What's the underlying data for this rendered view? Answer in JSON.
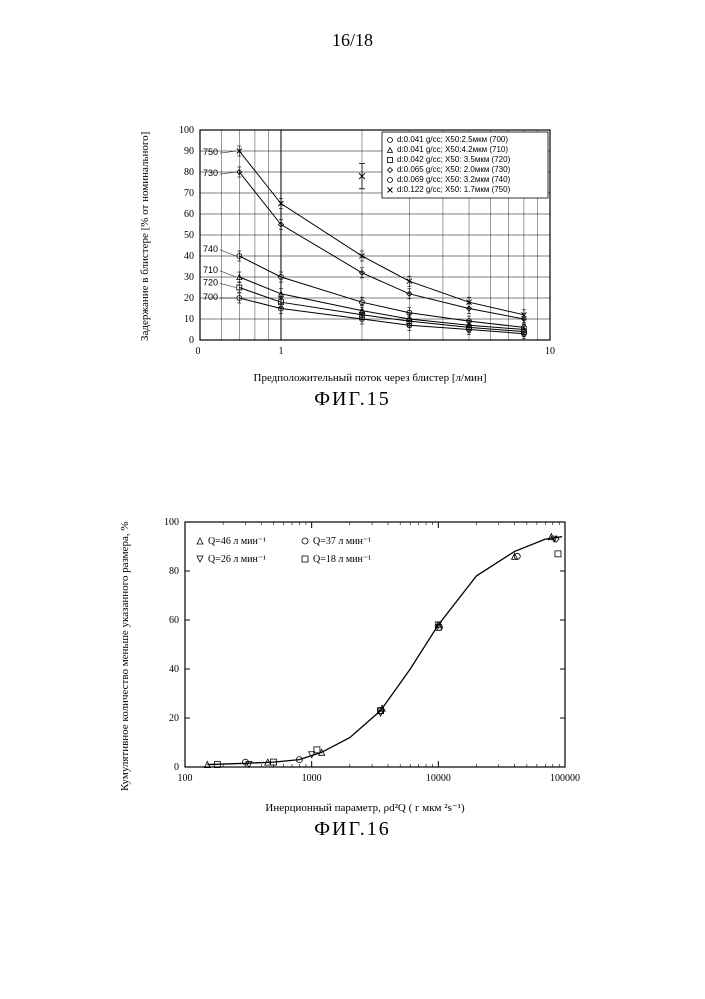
{
  "page_number": "16/18",
  "fig15": {
    "caption": "ФИГ.15",
    "type": "line-scatter-semilogx",
    "xlabel": "Предположительный поток через блистер [л/мин]",
    "ylabel": "Задержание в блистере [% от номинального]",
    "xlim": [
      0,
      10
    ],
    "ylim": [
      0,
      100
    ],
    "yticks": [
      0,
      10,
      20,
      30,
      40,
      50,
      60,
      70,
      80,
      90,
      100
    ],
    "xticks_major": [
      1,
      10
    ],
    "xticks_labels": [
      "1",
      "10"
    ],
    "x_left_label": "0",
    "background_color": "#ffffff",
    "grid_color": "#000000",
    "curve_color": "#000000",
    "point_color": "#000000",
    "legend": {
      "entries": [
        {
          "marker": "circle",
          "text": "d:0.041 g/cc; X50:2.5мкм (700)"
        },
        {
          "marker": "triangle",
          "text": "d:0.041 g/cc; X50:4.2мкм (710)"
        },
        {
          "marker": "square",
          "text": "d:0.042 g/cc; X50: 3.5мкм (720)"
        },
        {
          "marker": "diamond",
          "text": "d:0.065 g/cc; X50: 2.0мкм (730)"
        },
        {
          "marker": "circle",
          "text": "d:0.069 g/cc; X50: 3.2мкм (740)"
        },
        {
          "marker": "x",
          "text": "d:0.122 g/cc; X50: 1.7мкм (750)"
        }
      ],
      "border_color": "#000000",
      "bg_color": "#ffffff"
    },
    "curve_labels": [
      "750",
      "730",
      "740",
      "710",
      "720",
      "700"
    ],
    "series": {
      "700": {
        "label": "700",
        "initial": 20,
        "points": [
          [
            0.7,
            20
          ],
          [
            1,
            15
          ],
          [
            2,
            10
          ],
          [
            3,
            7
          ],
          [
            5,
            5
          ],
          [
            8,
            3
          ]
        ]
      },
      "710": {
        "label": "710",
        "initial": 30,
        "points": [
          [
            0.7,
            30
          ],
          [
            1,
            22
          ],
          [
            2,
            14
          ],
          [
            3,
            10
          ],
          [
            5,
            7
          ],
          [
            8,
            5
          ]
        ]
      },
      "720": {
        "label": "720",
        "initial": 25,
        "points": [
          [
            0.7,
            25
          ],
          [
            1,
            18
          ],
          [
            2,
            12
          ],
          [
            3,
            9
          ],
          [
            5,
            6
          ],
          [
            8,
            4
          ]
        ]
      },
      "730": {
        "label": "730",
        "initial": 80,
        "points": [
          [
            0.7,
            80
          ],
          [
            1,
            55
          ],
          [
            2,
            32
          ],
          [
            3,
            22
          ],
          [
            5,
            15
          ],
          [
            8,
            10
          ]
        ]
      },
      "740": {
        "label": "740",
        "initial": 40,
        "points": [
          [
            0.7,
            40
          ],
          [
            1,
            30
          ],
          [
            2,
            18
          ],
          [
            3,
            13
          ],
          [
            5,
            9
          ],
          [
            8,
            6
          ]
        ]
      },
      "750": {
        "label": "750",
        "initial": 90,
        "points": [
          [
            0.7,
            90
          ],
          [
            1,
            65
          ],
          [
            2,
            40
          ],
          [
            3,
            28
          ],
          [
            5,
            18
          ],
          [
            8,
            12
          ]
        ]
      }
    }
  },
  "fig16": {
    "caption": "ФИГ.16",
    "type": "scatter-line-semilogx",
    "xlabel": "Инерционный параметр,  ρd²Q ( г мкм ²s⁻¹)",
    "ylabel": "Кумулятивное количество меньше указанного размера, %",
    "xlim": [
      100,
      100000
    ],
    "ylim": [
      0,
      100
    ],
    "yticks": [
      0,
      20,
      40,
      60,
      80,
      100
    ],
    "xticks": [
      100,
      1000,
      10000,
      100000
    ],
    "xticks_labels": [
      "100",
      "1000",
      "10000",
      "100000"
    ],
    "background_color": "#ffffff",
    "axis_color": "#000000",
    "curve_color": "#000000",
    "point_color": "#000000",
    "legend": {
      "entries": [
        {
          "marker": "triangle",
          "text": "Q=46 л мин⁻¹"
        },
        {
          "marker": "circle",
          "text": "Q=37 л мин⁻¹"
        },
        {
          "marker": "tri-down",
          "text": "Q=26 л мин⁻¹"
        },
        {
          "marker": "square",
          "text": "Q=18 л мин⁻¹"
        }
      ]
    },
    "curve_points": [
      [
        150,
        1
      ],
      [
        300,
        1.5
      ],
      [
        500,
        2
      ],
      [
        800,
        3
      ],
      [
        1200,
        6
      ],
      [
        2000,
        12
      ],
      [
        3500,
        23
      ],
      [
        6000,
        40
      ],
      [
        10000,
        58
      ],
      [
        20000,
        78
      ],
      [
        40000,
        88
      ],
      [
        70000,
        93
      ],
      [
        95000,
        94
      ]
    ],
    "scatter_points": [
      {
        "x": 150,
        "y": 1,
        "m": "triangle"
      },
      {
        "x": 180,
        "y": 1,
        "m": "square"
      },
      {
        "x": 300,
        "y": 2,
        "m": "circle"
      },
      {
        "x": 320,
        "y": 1,
        "m": "tri-down"
      },
      {
        "x": 450,
        "y": 2,
        "m": "triangle"
      },
      {
        "x": 500,
        "y": 2,
        "m": "square"
      },
      {
        "x": 800,
        "y": 3,
        "m": "circle"
      },
      {
        "x": 1000,
        "y": 5,
        "m": "tri-down"
      },
      {
        "x": 1100,
        "y": 7,
        "m": "square"
      },
      {
        "x": 1200,
        "y": 6,
        "m": "triangle"
      },
      {
        "x": 3500,
        "y": 23,
        "m": "square"
      },
      {
        "x": 3500,
        "y": 22,
        "m": "tri-down"
      },
      {
        "x": 3600,
        "y": 24,
        "m": "triangle"
      },
      {
        "x": 3500,
        "y": 23,
        "m": "circle"
      },
      {
        "x": 10000,
        "y": 57,
        "m": "square"
      },
      {
        "x": 10000,
        "y": 58,
        "m": "triangle"
      },
      {
        "x": 10200,
        "y": 57,
        "m": "circle"
      },
      {
        "x": 10000,
        "y": 58,
        "m": "tri-down"
      },
      {
        "x": 40000,
        "y": 86,
        "m": "triangle"
      },
      {
        "x": 42000,
        "y": 86,
        "m": "circle"
      },
      {
        "x": 78000,
        "y": 94,
        "m": "triangle"
      },
      {
        "x": 82000,
        "y": 93,
        "m": "tri-down"
      },
      {
        "x": 85000,
        "y": 93,
        "m": "diamond"
      },
      {
        "x": 88000,
        "y": 87,
        "m": "square"
      }
    ]
  }
}
